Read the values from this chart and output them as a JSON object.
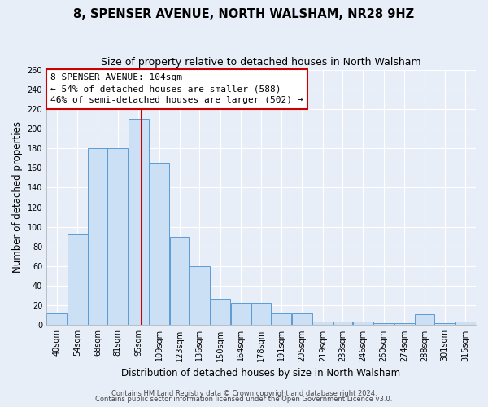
{
  "title": "8, SPENSER AVENUE, NORTH WALSHAM, NR28 9HZ",
  "subtitle": "Size of property relative to detached houses in North Walsham",
  "xlabel": "Distribution of detached houses by size in North Walsham",
  "ylabel": "Number of detached properties",
  "bin_labels": [
    "40sqm",
    "54sqm",
    "68sqm",
    "81sqm",
    "95sqm",
    "109sqm",
    "123sqm",
    "136sqm",
    "150sqm",
    "164sqm",
    "178sqm",
    "191sqm",
    "205sqm",
    "219sqm",
    "233sqm",
    "246sqm",
    "260sqm",
    "274sqm",
    "288sqm",
    "301sqm",
    "315sqm"
  ],
  "bin_edges": [
    40,
    54,
    68,
    81,
    95,
    109,
    123,
    136,
    150,
    164,
    178,
    191,
    205,
    219,
    233,
    246,
    260,
    274,
    288,
    301,
    315,
    329
  ],
  "counts": [
    12,
    92,
    180,
    180,
    210,
    165,
    90,
    60,
    27,
    23,
    23,
    12,
    12,
    4,
    4,
    4,
    2,
    2,
    11,
    2,
    4
  ],
  "bar_color": "#cce0f5",
  "bar_edge_color": "#5b9bd5",
  "vline_x": 104,
  "vline_color": "#cc0000",
  "annotation_text": "8 SPENSER AVENUE: 104sqm\n← 54% of detached houses are smaller (588)\n46% of semi-detached houses are larger (502) →",
  "annotation_box_color": "#ffffff",
  "annotation_box_edge": "#cc0000",
  "ylim": [
    0,
    260
  ],
  "yticks": [
    0,
    20,
    40,
    60,
    80,
    100,
    120,
    140,
    160,
    180,
    200,
    220,
    240,
    260
  ],
  "footer1": "Contains HM Land Registry data © Crown copyright and database right 2024.",
  "footer2": "Contains public sector information licensed under the Open Government Licence v3.0.",
  "bg_color": "#e8eef8",
  "plot_bg_color": "#e8eef8",
  "grid_color": "#ffffff",
  "title_fontsize": 10.5,
  "subtitle_fontsize": 9,
  "axis_label_fontsize": 8.5,
  "tick_fontsize": 7,
  "annotation_fontsize": 8,
  "footer_fontsize": 6
}
